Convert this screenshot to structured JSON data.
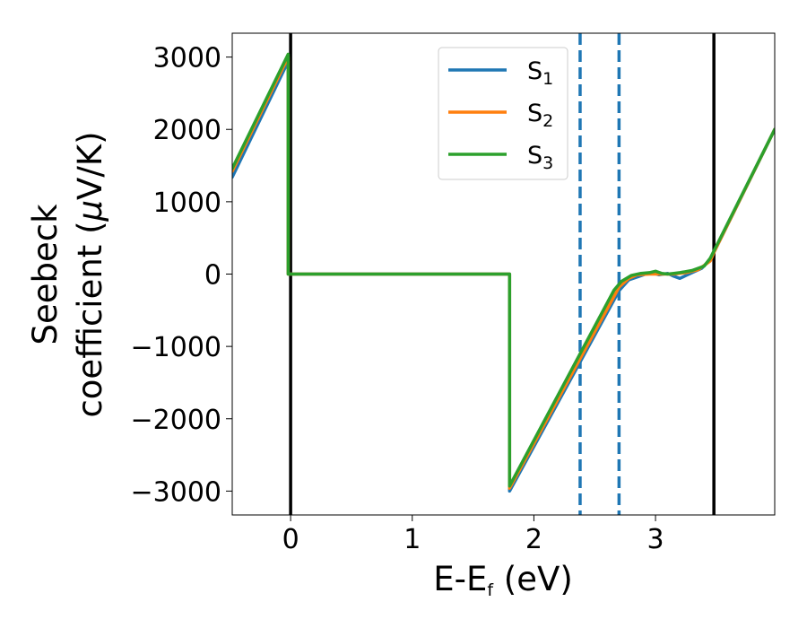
{
  "chart_data": {
    "type": "line",
    "xlabel": {
      "main": "E-E",
      "sub": "f",
      "unit": " (eV)"
    },
    "ylabel": {
      "line1": "Seebeck",
      "line2_prefix": "coefficient  (",
      "mu": "μ",
      "line2_suffix": "V/K)"
    },
    "xlim": [
      -0.48,
      3.98
    ],
    "ylim": [
      -3330,
      3330
    ],
    "xticks": [
      0,
      1,
      2,
      3
    ],
    "xtick_labels": [
      "0",
      "1",
      "2",
      "3"
    ],
    "yticks": [
      -3000,
      -2000,
      -1000,
      0,
      1000,
      2000,
      3000
    ],
    "ytick_labels": [
      "−3000",
      "−2000",
      "−1000",
      "0",
      "1000",
      "2000",
      "3000"
    ],
    "grid": false,
    "legend_position": "top-center",
    "vertical_lines": [
      {
        "x": 0.0,
        "style": "solid",
        "color": "#000000"
      },
      {
        "x": 3.48,
        "style": "solid",
        "color": "#000000"
      },
      {
        "x": 2.38,
        "style": "dashed",
        "color": "#1f77b4"
      },
      {
        "x": 2.7,
        "style": "dashed",
        "color": "#1f77b4"
      }
    ],
    "series": [
      {
        "name": "S",
        "sub": "1",
        "color": "#1f77b4",
        "points": [
          [
            -0.48,
            1340
          ],
          [
            -0.02,
            2940
          ],
          [
            -0.02,
            0
          ],
          [
            1.8,
            0
          ],
          [
            1.8,
            -3000
          ],
          [
            2.7,
            -230
          ],
          [
            2.78,
            -80
          ],
          [
            2.85,
            -40
          ],
          [
            2.92,
            0
          ],
          [
            2.97,
            20
          ],
          [
            3.03,
            -10
          ],
          [
            3.1,
            10
          ],
          [
            3.15,
            -30
          ],
          [
            3.2,
            -60
          ],
          [
            3.25,
            -20
          ],
          [
            3.3,
            20
          ],
          [
            3.38,
            80
          ],
          [
            3.45,
            200
          ],
          [
            3.48,
            300
          ],
          [
            3.98,
            2000
          ]
        ]
      },
      {
        "name": "S",
        "sub": "2",
        "color": "#ff7f0e",
        "points": [
          [
            -0.48,
            1420
          ],
          [
            -0.02,
            3000
          ],
          [
            -0.02,
            0
          ],
          [
            1.8,
            0
          ],
          [
            1.8,
            -2960
          ],
          [
            2.7,
            -180
          ],
          [
            2.78,
            -60
          ],
          [
            2.85,
            -10
          ],
          [
            2.95,
            0
          ],
          [
            3.05,
            0
          ],
          [
            3.15,
            0
          ],
          [
            3.25,
            20
          ],
          [
            3.35,
            60
          ],
          [
            3.45,
            180
          ],
          [
            3.48,
            300
          ],
          [
            3.98,
            2000
          ]
        ]
      },
      {
        "name": "S",
        "sub": "3",
        "color": "#2ca02c",
        "points": [
          [
            -0.48,
            1460
          ],
          [
            -0.02,
            3040
          ],
          [
            -0.02,
            0
          ],
          [
            1.8,
            0
          ],
          [
            1.8,
            -2930
          ],
          [
            2.66,
            -220
          ],
          [
            2.72,
            -100
          ],
          [
            2.8,
            -20
          ],
          [
            2.88,
            10
          ],
          [
            2.95,
            20
          ],
          [
            3.0,
            40
          ],
          [
            3.05,
            10
          ],
          [
            3.1,
            0
          ],
          [
            3.15,
            10
          ],
          [
            3.2,
            20
          ],
          [
            3.3,
            50
          ],
          [
            3.4,
            110
          ],
          [
            3.45,
            220
          ],
          [
            3.48,
            320
          ],
          [
            3.98,
            2000
          ]
        ]
      }
    ]
  }
}
